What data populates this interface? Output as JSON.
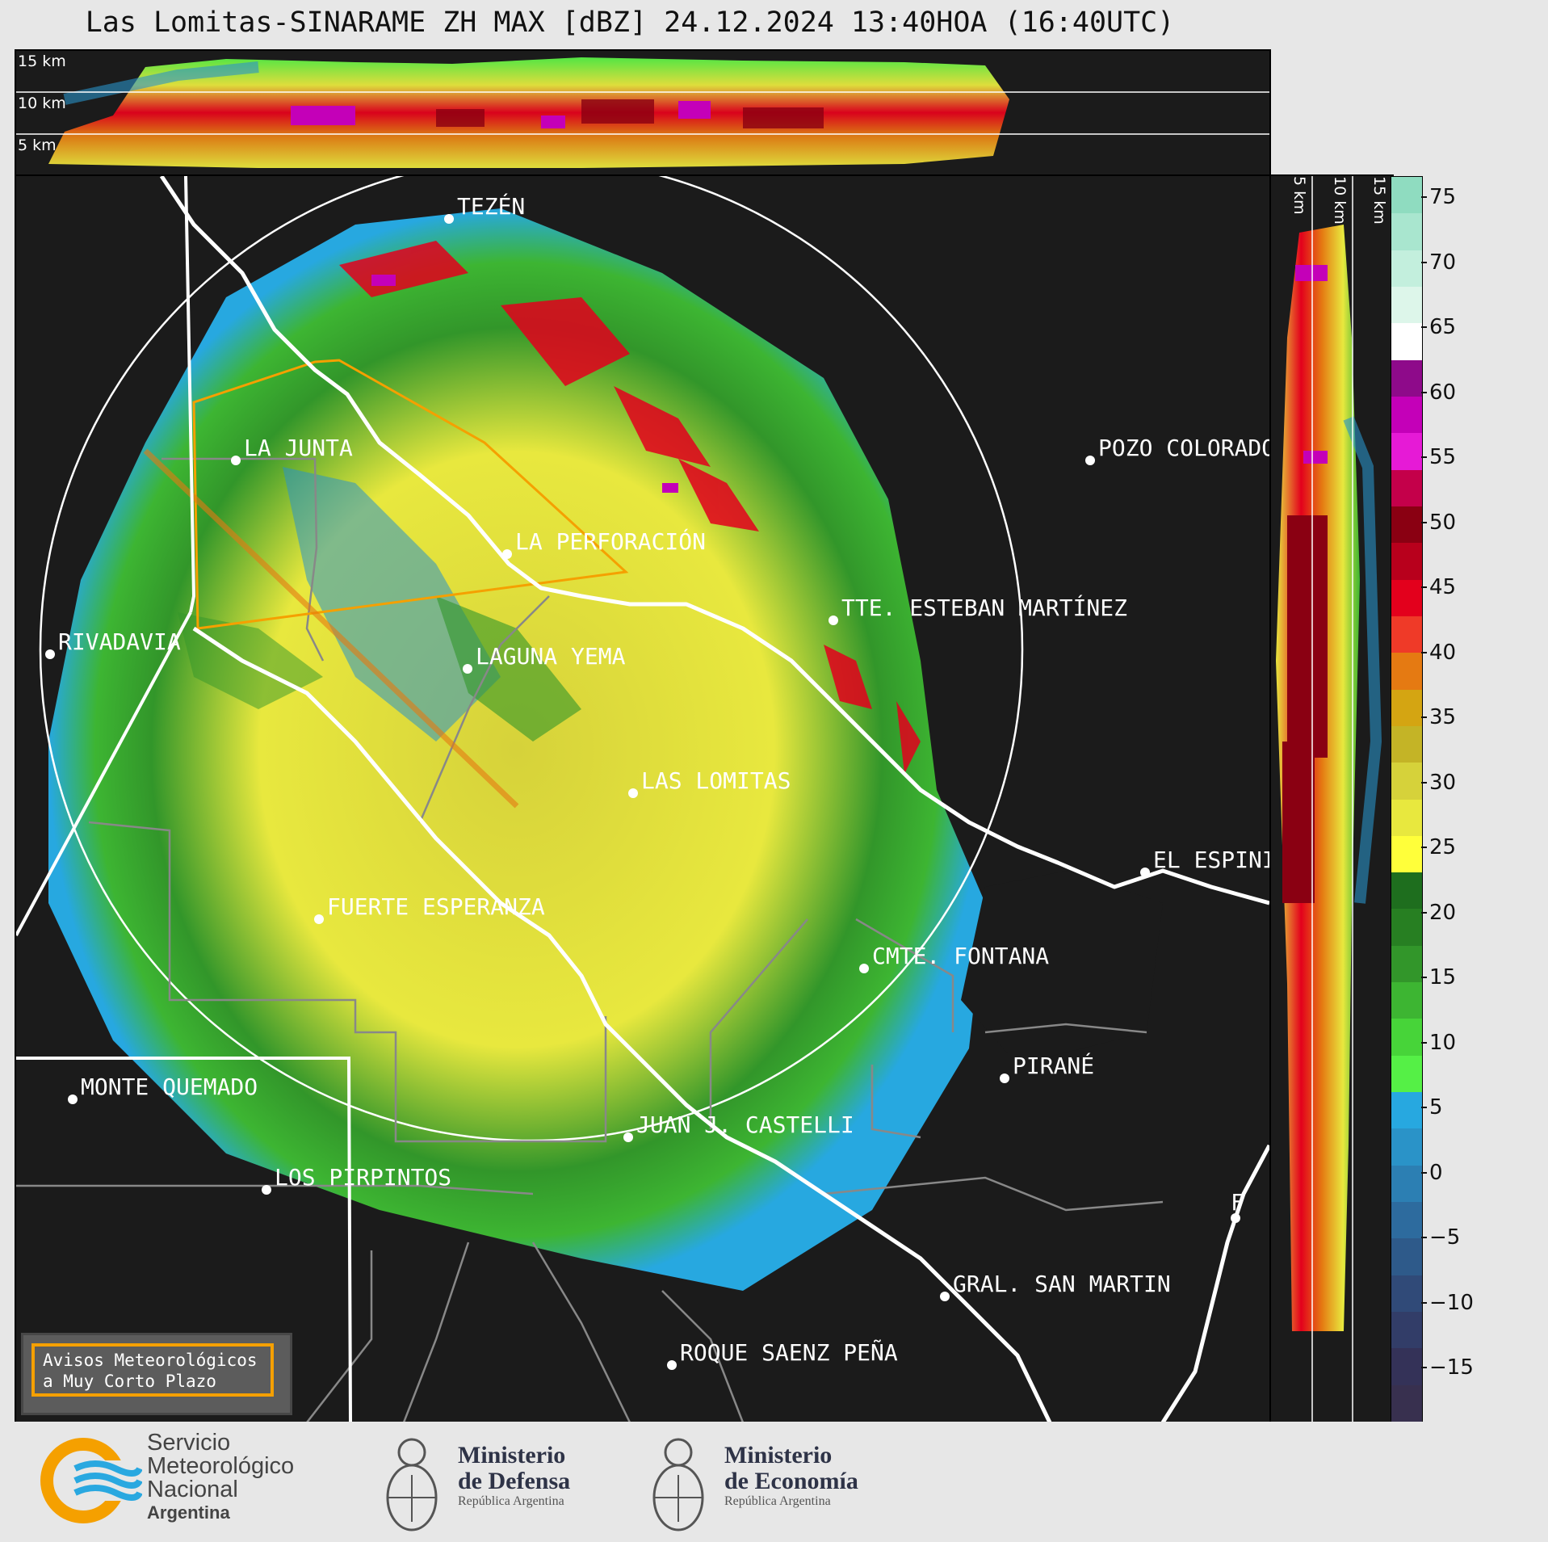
{
  "title": "Las Lomitas-SINARAME ZH MAX [dBZ] 24.12.2024 13:40HOA (16:40UTC)",
  "height_labels_top": [
    "15 km",
    "10 km",
    "5 km"
  ],
  "height_labels_right": [
    "5 km",
    "10 km",
    "15 km"
  ],
  "colorbar": {
    "unit": "dBZ",
    "ticks": [
      "75",
      "70",
      "65",
      "60",
      "55",
      "50",
      "45",
      "40",
      "35",
      "30",
      "25",
      "20",
      "15",
      "10",
      "5",
      "0",
      "−5",
      "−10",
      "−15"
    ],
    "colors": [
      "#8fdcc0",
      "#a9e6cf",
      "#c3efdd",
      "#ddf6ea",
      "#ffffff",
      "#8e0a8a",
      "#c400b8",
      "#e61ad6",
      "#c4004a",
      "#8a0012",
      "#b8001c",
      "#e3001c",
      "#ef3a28",
      "#e57a12",
      "#d4a512",
      "#c4b426",
      "#d6d23a",
      "#e8e83e",
      "#ffff3a",
      "#1e6e1e",
      "#277f22",
      "#32962a",
      "#3db532",
      "#47d439",
      "#55f046",
      "#27a8e0",
      "#2a93c8",
      "#2c7fb3",
      "#2d6b9e",
      "#2e5a8a",
      "#304a78",
      "#323d68",
      "#343258",
      "#38304f"
    ]
  },
  "towns": [
    {
      "name": "TEZÉN"
    },
    {
      "name": "LA JUNTA"
    },
    {
      "name": "POZO COLORADO"
    },
    {
      "name": "LA PERFORACIÓN"
    },
    {
      "name": "TTE. ESTEBAN MARTÍNEZ"
    },
    {
      "name": "RIVADAVIA"
    },
    {
      "name": "LAGUNA YEMA"
    },
    {
      "name": "LAS LOMITAS"
    },
    {
      "name": "EL ESPINILLO"
    },
    {
      "name": "FUERTE ESPERANZA"
    },
    {
      "name": "CMTE. FONTANA"
    },
    {
      "name": "PIRANÉ"
    },
    {
      "name": "MONTE QUEMADO"
    },
    {
      "name": "JUAN J. CASTELLI"
    },
    {
      "name": "LOS PIRPINTOS"
    },
    {
      "name": "GRAL. SAN MARTIN"
    },
    {
      "name": "ROQUE SAENZ PEÑA"
    },
    {
      "name": "F"
    }
  ],
  "avisos": {
    "line1": "Avisos Meteorológicos",
    "line2": "a Muy Corto Plazo"
  },
  "footer": {
    "smn": {
      "l1": "Servicio",
      "l2": "Meteorológico",
      "l3": "Nacional",
      "l4": "Argentina"
    },
    "defensa": {
      "l1": "Ministerio",
      "l2": "de Defensa",
      "l3": "República Argentina"
    },
    "economia": {
      "l1": "Ministerio",
      "l2": "de Economía",
      "l3": "República Argentina"
    }
  }
}
